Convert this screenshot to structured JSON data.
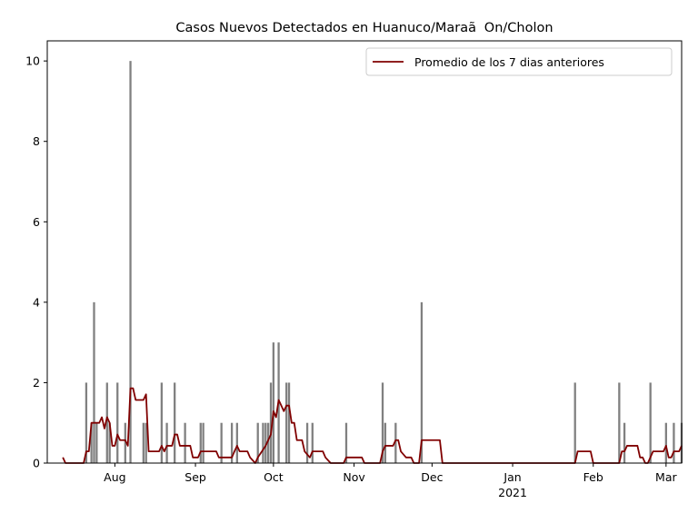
{
  "chart_data": {
    "type": "bar",
    "title": "Casos Nuevos Detectados en Huanuco/MaraãOn/Cholon",
    "xlim": [
      "2020-07-06",
      "2021-03-07"
    ],
    "ylim": [
      0,
      10.5
    ],
    "yticks": [
      0,
      2,
      4,
      6,
      8,
      10
    ],
    "xticks": [
      {
        "value": "2020-08-01",
        "label": "Aug"
      },
      {
        "value": "2020-09-01",
        "label": "Sep"
      },
      {
        "value": "2020-10-01",
        "label": "Oct"
      },
      {
        "value": "2020-11-01",
        "label": "Nov"
      },
      {
        "value": "2020-12-01",
        "label": "Dec"
      },
      {
        "value": "2021-01-01",
        "label": "Jan\n2021"
      },
      {
        "value": "2021-02-01",
        "label": "Feb"
      },
      {
        "value": "2021-03-01",
        "label": "Mar"
      }
    ],
    "legend": "upper right",
    "bars": {
      "color": "#808080",
      "x": [
        "2020-07-21",
        "2020-07-23",
        "2020-07-24",
        "2020-07-25",
        "2020-07-29",
        "2020-07-30",
        "2020-08-02",
        "2020-08-05",
        "2020-08-07",
        "2020-08-12",
        "2020-08-13",
        "2020-08-19",
        "2020-08-21",
        "2020-08-24",
        "2020-08-28",
        "2020-09-03",
        "2020-09-04",
        "2020-09-11",
        "2020-09-15",
        "2020-09-17",
        "2020-09-25",
        "2020-09-27",
        "2020-09-28",
        "2020-09-29",
        "2020-09-30",
        "2020-10-01",
        "2020-10-03",
        "2020-10-06",
        "2020-10-07",
        "2020-10-14",
        "2020-10-16",
        "2020-10-29",
        "2020-11-12",
        "2020-11-13",
        "2020-11-17",
        "2020-11-27",
        "2021-01-25",
        "2021-02-11",
        "2021-02-13",
        "2021-02-23",
        "2021-03-01",
        "2021-03-04",
        "2021-03-07"
      ],
      "values": [
        2,
        1,
        4,
        1,
        2,
        1,
        2,
        1,
        10,
        1,
        1,
        2,
        1,
        2,
        1,
        1,
        1,
        1,
        1,
        1,
        1,
        1,
        1,
        1,
        2,
        3,
        3,
        2,
        2,
        1,
        1,
        1,
        2,
        1,
        1,
        4,
        2,
        2,
        1,
        2,
        1,
        1,
        1
      ]
    },
    "series": [
      {
        "name": "Promedio de los 7 dias anteriores",
        "color": "#800000",
        "type": "line",
        "x": [
          "2020-07-12",
          "2020-07-13",
          "2020-07-20",
          "2020-07-21",
          "2020-07-22",
          "2020-07-23",
          "2020-07-26",
          "2020-07-27",
          "2020-07-28",
          "2020-07-29",
          "2020-07-30",
          "2020-07-31",
          "2020-08-01",
          "2020-08-02",
          "2020-08-03",
          "2020-08-05",
          "2020-08-06",
          "2020-08-07",
          "2020-08-08",
          "2020-08-09",
          "2020-08-12",
          "2020-08-13",
          "2020-08-14",
          "2020-08-18",
          "2020-08-19",
          "2020-08-20",
          "2020-08-21",
          "2020-08-23",
          "2020-08-24",
          "2020-08-25",
          "2020-08-26",
          "2020-08-30",
          "2020-08-31",
          "2020-09-02",
          "2020-09-03",
          "2020-09-09",
          "2020-09-10",
          "2020-09-15",
          "2020-09-16",
          "2020-09-17",
          "2020-09-18",
          "2020-09-21",
          "2020-09-22",
          "2020-09-24",
          "2020-09-25",
          "2020-09-28",
          "2020-09-30",
          "2020-10-01",
          "2020-10-02",
          "2020-10-03",
          "2020-10-04",
          "2020-10-05",
          "2020-10-06",
          "2020-10-07",
          "2020-10-08",
          "2020-10-09",
          "2020-10-10",
          "2020-10-12",
          "2020-10-13",
          "2020-10-15",
          "2020-10-16",
          "2020-10-20",
          "2020-10-21",
          "2020-10-23",
          "2020-10-28",
          "2020-10-29",
          "2020-11-04",
          "2020-11-05",
          "2020-11-11",
          "2020-11-12",
          "2020-11-13",
          "2020-11-16",
          "2020-11-17",
          "2020-11-18",
          "2020-11-19",
          "2020-11-21",
          "2020-11-23",
          "2020-11-24",
          "2020-11-26",
          "2020-11-27",
          "2020-12-04",
          "2020-12-05",
          "2021-01-25",
          "2021-01-26",
          "2021-01-31",
          "2021-02-01",
          "2021-02-11",
          "2021-02-12",
          "2021-02-13",
          "2021-02-14",
          "2021-02-18",
          "2021-02-19",
          "2021-02-20",
          "2021-02-21",
          "2021-02-22",
          "2021-02-24",
          "2021-02-28",
          "2021-03-01",
          "2021-03-02",
          "2021-03-03",
          "2021-03-04",
          "2021-03-06",
          "2021-03-07"
        ],
        "values": [
          0.14,
          0,
          0,
          0.29,
          0.29,
          1,
          1,
          1.14,
          0.86,
          1.14,
          1,
          0.43,
          0.43,
          0.71,
          0.57,
          0.57,
          0.43,
          1.86,
          1.86,
          1.57,
          1.57,
          1.71,
          0.29,
          0.29,
          0.43,
          0.29,
          0.43,
          0.43,
          0.71,
          0.71,
          0.43,
          0.43,
          0.14,
          0.14,
          0.29,
          0.29,
          0.14,
          0.14,
          0.29,
          0.43,
          0.29,
          0.29,
          0.14,
          0,
          0.14,
          0.43,
          0.71,
          1.29,
          1.14,
          1.57,
          1.43,
          1.29,
          1.43,
          1.43,
          1,
          1,
          0.57,
          0.57,
          0.29,
          0.14,
          0.29,
          0.29,
          0.14,
          0,
          0,
          0.14,
          0.14,
          0,
          0,
          0.29,
          0.43,
          0.43,
          0.57,
          0.57,
          0.29,
          0.14,
          0.14,
          0,
          0,
          0.57,
          0.57,
          0,
          0,
          0.29,
          0.29,
          0,
          0,
          0.29,
          0.29,
          0.43,
          0.43,
          0.14,
          0.14,
          0,
          0,
          0.29,
          0.29,
          0.43,
          0.14,
          0.14,
          0.29,
          0.29,
          0.43
        ]
      }
    ]
  }
}
